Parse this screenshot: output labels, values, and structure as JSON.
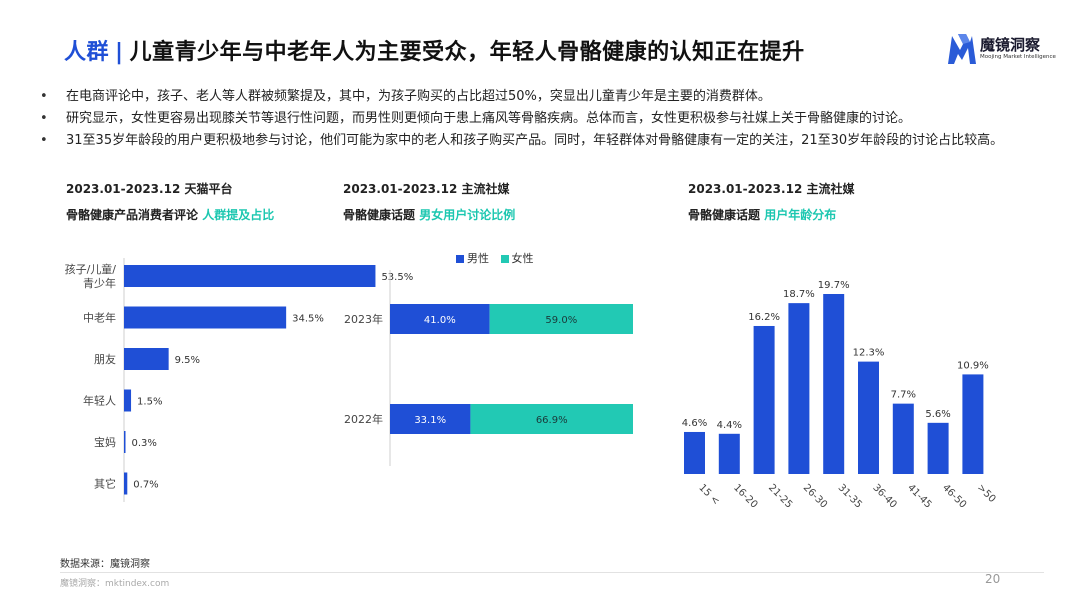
{
  "header": {
    "tag": "人群",
    "separator": "|",
    "title": "儿童青少年与中老年人为主要受众，年轻人骨骼健康的认知正在提升"
  },
  "logo": {
    "name": "魔镜洞察",
    "subtitle": "Moojing Market Intelligence",
    "brand_color": "#2a5bd7"
  },
  "bullets": [
    "在电商评论中，孩子、老人等人群被频繁提及，其中，为孩子购买的占比超过50%，突显出儿童青少年是主要的消费群体。",
    "研究显示，女性更容易出现膝关节等退行性问题，而男性则更倾向于患上痛风等骨骼疾病。总体而言，女性更积极参与社媒上关于骨骼健康的讨论。",
    "31至35岁年龄段的用户更积极地参与讨论，他们可能为家中的老人和孩子购买产品。同时，年轻群体对骨骼健康有一定的关注，21至30岁年龄段的讨论占比较高。"
  ],
  "colors": {
    "primary": "#1f4fd6",
    "teal": "#22c9b4",
    "highlight_text": "#1cc7b0"
  },
  "charts_meta": [
    {
      "period": "2023.01-2023.12 天猫平台",
      "subtitle_plain": "骨骼健康产品消费者评论 ",
      "subtitle_highlight": "人群提及占比"
    },
    {
      "period": "2023.01-2023.12 主流社媒",
      "subtitle_plain": "骨骼健康话题 ",
      "subtitle_highlight": "男女用户讨论比例"
    },
    {
      "period": "2023.01-2023.12 主流社媒",
      "subtitle_plain": "骨骼健康话题 ",
      "subtitle_highlight": "用户年龄分布"
    }
  ],
  "chart_data": [
    {
      "type": "bar",
      "orientation": "horizontal",
      "categories": [
        "孩子/儿童/青少年",
        "中老年",
        "朋友",
        "年轻人",
        "宝妈",
        "其它"
      ],
      "values": [
        53.5,
        34.5,
        9.5,
        1.5,
        0.3,
        0.7
      ],
      "value_labels": [
        "53.5%",
        "34.5%",
        "9.5%",
        "1.5%",
        "0.3%",
        "0.7%"
      ],
      "unit": "%",
      "color": "#1f4fd6"
    },
    {
      "type": "bar",
      "orientation": "horizontal",
      "stacked": "100%",
      "categories": [
        "2023年",
        "2022年"
      ],
      "series": [
        {
          "name": "男性",
          "values": [
            41.0,
            33.1
          ],
          "labels": [
            "41.0%",
            "33.1%"
          ],
          "color": "#1f4fd6"
        },
        {
          "name": "女性",
          "values": [
            59.0,
            66.9
          ],
          "labels": [
            "59.0%",
            "66.9%"
          ],
          "color": "#22c9b4"
        }
      ],
      "legend": "top"
    },
    {
      "type": "bar",
      "categories": [
        "15 <",
        "16-20",
        "21-25",
        "26-30",
        "31-35",
        "36-40",
        "41-45",
        "46-50",
        ">50"
      ],
      "values": [
        4.6,
        4.4,
        16.2,
        18.7,
        19.7,
        12.3,
        7.7,
        5.6,
        10.9
      ],
      "value_labels": [
        "4.6%",
        "4.4%",
        "16.2%",
        "18.7%",
        "19.7%",
        "12.3%",
        "7.7%",
        "5.6%",
        "10.9%"
      ],
      "unit": "%",
      "color": "#1f4fd6"
    }
  ],
  "footer": {
    "source": "数据来源：魔镜洞察",
    "site": "魔镜洞察：mktindex.com",
    "page": "20"
  }
}
